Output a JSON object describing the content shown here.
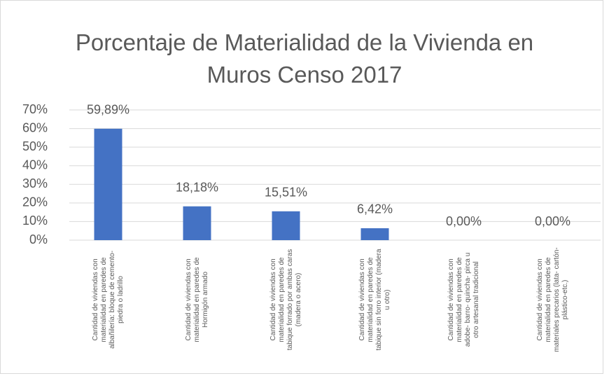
{
  "chart_data": {
    "type": "bar",
    "title": "Porcentaje de Materialidad de la Vivienda en Muros Censo 2017",
    "categories": [
      "Cantidad de viviendas con materialidad en paredes de albañilería: bloque de cemento- piedra o ladrillo",
      "Cantidad de viviendas con materialidad en paredes de Hormigón armado",
      "Cantidad de viviendas con materialidad en paredes de tabique forrado por ambas caras (madera o acero)",
      "Cantidad de viviendas con materialidad en paredes de tabique sin forro interior (madera u otro)",
      "Cantidad de viviendas con materialidad en paredes de adobe- barro- quincha- pirca u otro artesanal tradicional",
      "Cantidad de viviendas con materialidad en paredes de materiales precarios (lata- cartón- plástico-etc.)"
    ],
    "values": [
      59.89,
      18.18,
      15.51,
      6.42,
      0,
      0
    ],
    "value_labels": [
      "59,89%",
      "18,18%",
      "15,51%",
      "6,42%",
      "0,00%",
      "0,00%"
    ],
    "color": "#4472c4",
    "ylim": [
      0,
      70
    ],
    "yticks": [
      {
        "value": 0,
        "label": "0%"
      },
      {
        "value": 10,
        "label": "10%"
      },
      {
        "value": 20,
        "label": "20%"
      },
      {
        "value": 30,
        "label": "30%"
      },
      {
        "value": 40,
        "label": "40%"
      },
      {
        "value": 50,
        "label": "50%"
      },
      {
        "value": 60,
        "label": "60%"
      },
      {
        "value": 70,
        "label": "70%"
      }
    ],
    "grid": true
  }
}
